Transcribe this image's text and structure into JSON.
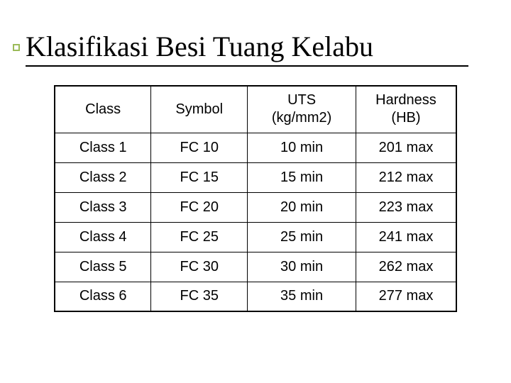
{
  "slide": {
    "title": "Klasifikasi Besi Tuang Kelabu",
    "bullet_color": "#9bbb59",
    "underline_color": "#000000",
    "background_color": "#ffffff",
    "text_color": "#000000"
  },
  "table": {
    "type": "table",
    "border_color": "#000000",
    "header_fontsize": 20,
    "cell_fontsize": 20,
    "columns": [
      {
        "label_line1": "Class",
        "label_line2": "",
        "width_pct": 24,
        "align": "center"
      },
      {
        "label_line1": "Symbol",
        "label_line2": "",
        "width_pct": 24,
        "align": "center"
      },
      {
        "label_line1": "UTS",
        "label_line2": "(kg/mm2)",
        "width_pct": 27,
        "align": "center"
      },
      {
        "label_line1": "Hardness",
        "label_line2": "(HB)",
        "width_pct": 25,
        "align": "center"
      }
    ],
    "rows": [
      {
        "class": "Class 1",
        "symbol": "FC 10",
        "uts": "10 min",
        "hardness": "201 max"
      },
      {
        "class": "Class 2",
        "symbol": "FC 15",
        "uts": "15 min",
        "hardness": "212 max"
      },
      {
        "class": "Class 3",
        "symbol": "FC 20",
        "uts": "20 min",
        "hardness": "223 max"
      },
      {
        "class": "Class 4",
        "symbol": "FC 25",
        "uts": "25 min",
        "hardness": "241 max"
      },
      {
        "class": "Class 5",
        "symbol": "FC 30",
        "uts": "30 min",
        "hardness": "262 max"
      },
      {
        "class": "Class 6",
        "symbol": "FC 35",
        "uts": "35 min",
        "hardness": "277 max"
      }
    ]
  }
}
